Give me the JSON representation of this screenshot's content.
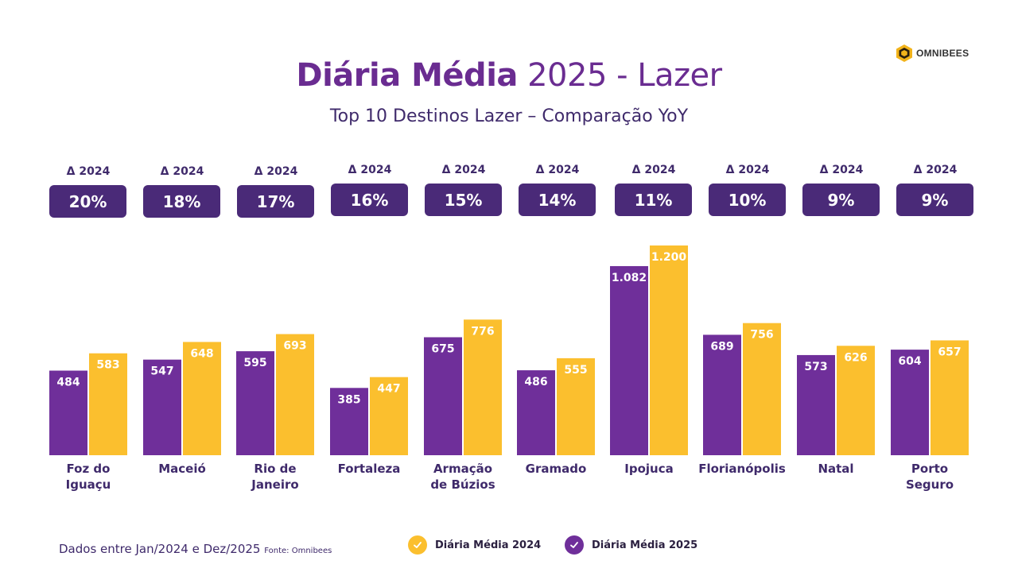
{
  "header": {
    "title_bold": "Diária Média",
    "title_rest": " 2025 - Lazer",
    "subtitle": "Top 10 Destinos Lazer – Comparação YoY"
  },
  "logo": {
    "text": "OMNIBEES",
    "icon": "hexagon-logo-icon"
  },
  "colors": {
    "y2024": "#fbbf2e",
    "y2025": "#6f2f9a",
    "badge": "#4a2a78",
    "text": "#3f2a6b"
  },
  "deltas": [
    {
      "label": "Δ 2024",
      "value": "20%"
    },
    {
      "label": "Δ 2024",
      "value": "18%"
    },
    {
      "label": "Δ 2024",
      "value": "17%"
    },
    {
      "label": "Δ 2024",
      "value": "16%"
    },
    {
      "label": "Δ 2024",
      "value": "15%"
    },
    {
      "label": "Δ 2024",
      "value": "14%"
    },
    {
      "label": "Δ 2024",
      "value": "11%"
    },
    {
      "label": "Δ 2024",
      "value": "10%"
    },
    {
      "label": "Δ 2024",
      "value": "9%"
    },
    {
      "label": "Δ 2024",
      "value": "9%"
    }
  ],
  "chart_data": {
    "type": "bar",
    "title": "Diária Média 2025 - Lazer",
    "subtitle": "Top 10 Destinos Lazer – Comparação YoY",
    "categories": [
      "Foz do Iguaçu",
      "Maceió",
      "Rio de Janeiro",
      "Fortaleza",
      "Armação de Búzios",
      "Gramado",
      "Ipojuca",
      "Florianópolis",
      "Natal",
      "Porto Seguro"
    ],
    "category_lines": [
      [
        "Foz do",
        "Iguaçu"
      ],
      [
        "Maceió"
      ],
      [
        "Rio de",
        "Janeiro"
      ],
      [
        "Fortaleza"
      ],
      [
        "Armação",
        "de Búzios"
      ],
      [
        "Gramado"
      ],
      [
        "Ipojuca"
      ],
      [
        "Florianópolis"
      ],
      [
        "Natal"
      ],
      [
        "Porto",
        "Seguro"
      ]
    ],
    "series": [
      {
        "name": "Diária Média 2025",
        "color": "#6f2f9a",
        "values": [
          484,
          547,
          595,
          385,
          675,
          486,
          1082,
          689,
          573,
          604
        ],
        "labels": [
          "484",
          "547",
          "595",
          "385",
          "675",
          "486",
          "1.082",
          "689",
          "573",
          "604"
        ]
      },
      {
        "name": "Diária Média 2024",
        "color": "#fbbf2e",
        "values": [
          583,
          648,
          693,
          447,
          776,
          555,
          1200,
          756,
          626,
          657
        ],
        "labels": [
          "583",
          "648",
          "693",
          "447",
          "776",
          "555",
          "1.200",
          "756",
          "626",
          "657"
        ]
      }
    ],
    "xlabel": "",
    "ylabel": "",
    "ylim": [
      0,
      1200
    ],
    "grid": false,
    "legend": "bottom-center"
  },
  "legend": [
    {
      "label": "Diária Média 2024",
      "color": "#fbbf2e",
      "icon": "check-icon"
    },
    {
      "label": "Diária Média 2025",
      "color": "#6f2f9a",
      "icon": "check-icon"
    }
  ],
  "footer": {
    "note": "Dados entre Jan/2024 e Dez/2025 ",
    "source": "Fonte: Omnibees"
  }
}
